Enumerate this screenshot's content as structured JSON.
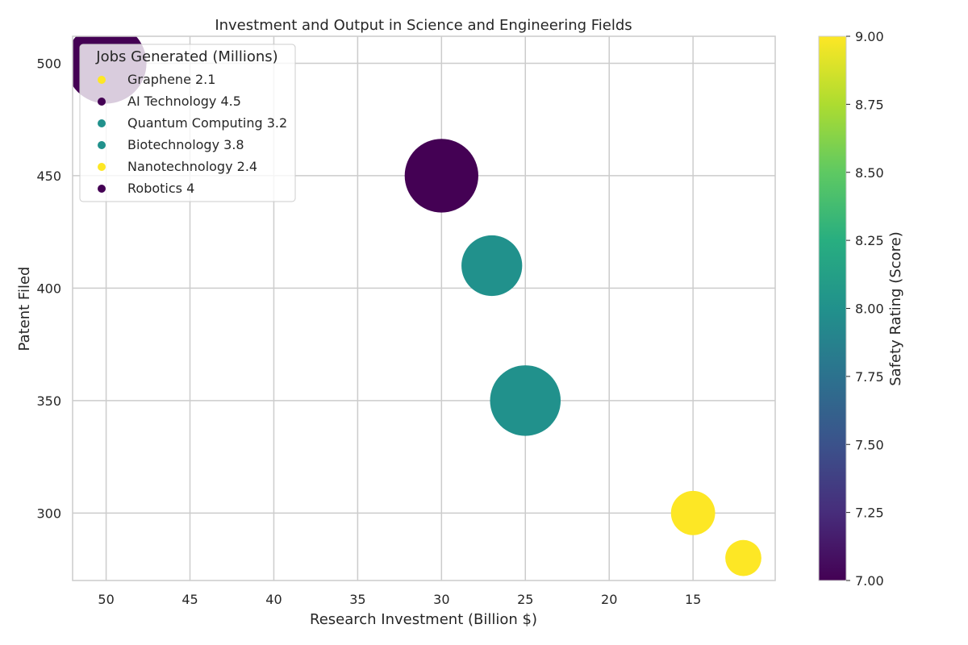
{
  "chart_data": {
    "type": "scatter",
    "title": "Investment and Output in Science and Engineering Fields",
    "xlabel": "Research Investment (Billion $)",
    "ylabel": "Patent Filed",
    "xlim": [
      52,
      10.1
    ],
    "ylim": [
      270,
      512
    ],
    "x_inverted": true,
    "xticks": [
      50,
      45,
      40,
      35,
      30,
      25,
      20,
      15
    ],
    "yticks": [
      300,
      350,
      400,
      450,
      500
    ],
    "grid": true,
    "legend": {
      "title": "Jobs Generated (Millions)",
      "placement": "top-left"
    },
    "colorbar": {
      "label": "Safety Rating (Score)",
      "colormap": "viridis",
      "range": [
        7.0,
        9.0
      ],
      "ticks": [
        "7.00",
        "7.25",
        "7.50",
        "7.75",
        "8.00",
        "8.25",
        "8.50",
        "8.75",
        "9.00"
      ]
    },
    "bubble_size_encodes": "Jobs Generated (Millions)",
    "points": [
      {
        "name": "Graphene",
        "x": 12,
        "y": 280,
        "jobs": 2.1,
        "safety": 9.0,
        "color": "#fde725"
      },
      {
        "name": "AI Technology",
        "x": 50,
        "y": 500,
        "jobs": 4.5,
        "safety": 7.0,
        "color": "#440154"
      },
      {
        "name": "Quantum Computing",
        "x": 27,
        "y": 410,
        "jobs": 3.2,
        "safety": 8.0,
        "color": "#21918c"
      },
      {
        "name": "Biotechnology",
        "x": 25,
        "y": 350,
        "jobs": 3.8,
        "safety": 8.0,
        "color": "#21918c"
      },
      {
        "name": "Nanotechnology",
        "x": 15,
        "y": 300,
        "jobs": 2.4,
        "safety": 9.0,
        "color": "#fde725"
      },
      {
        "name": "Robotics",
        "x": 30,
        "y": 450,
        "jobs": 4.0,
        "safety": 7.0,
        "color": "#440154"
      }
    ],
    "legend_entries": [
      "Graphene 2.1",
      "AI Technology 4.5",
      "Quantum Computing 3.2",
      "Biotechnology 3.8",
      "Nanotechnology 2.4",
      "Robotics 4"
    ]
  }
}
